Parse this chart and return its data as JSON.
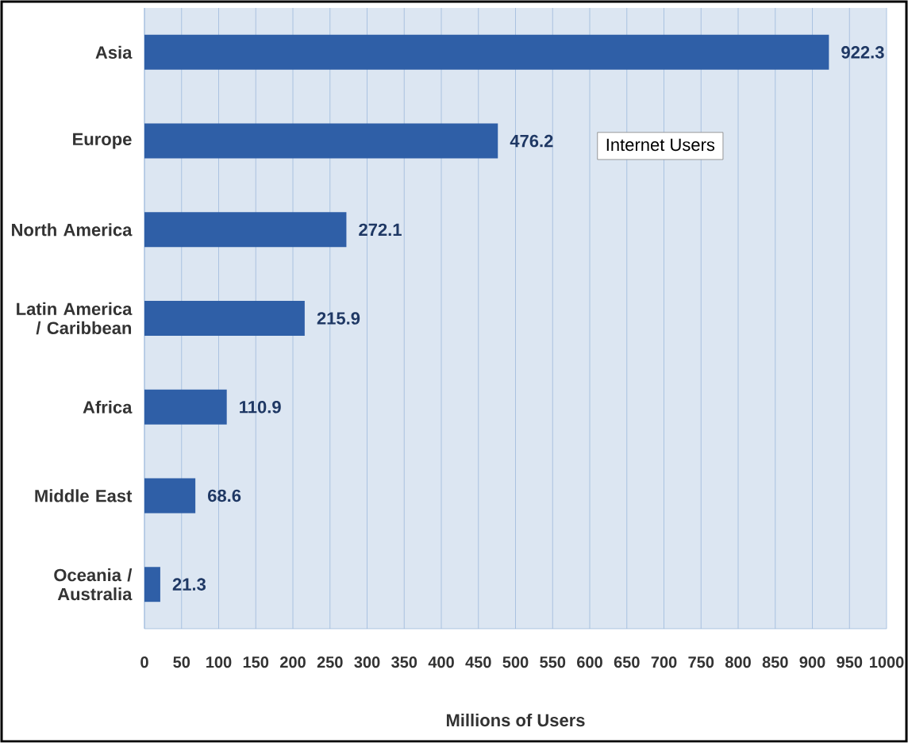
{
  "chart_data": {
    "type": "bar",
    "orientation": "horizontal",
    "xlabel": "Millions of Users",
    "categories": [
      "Asia",
      "Europe",
      "North America",
      "Latin America / Caribbean",
      "Africa",
      "Middle East",
      "Oceania  / Australia"
    ],
    "series": [
      {
        "name": "Internet Users",
        "color": "#2f5fa7",
        "values": [
          922.3,
          476.2,
          272.1,
          215.9,
          110.9,
          68.6,
          21.3
        ]
      }
    ],
    "xlim": [
      0,
      1000
    ],
    "xticks": [
      0,
      50,
      100,
      150,
      200,
      250,
      300,
      350,
      400,
      450,
      500,
      550,
      600,
      650,
      700,
      750,
      800,
      850,
      900,
      950,
      1000
    ],
    "grid": "x",
    "legend": "top right",
    "data_labels": true
  }
}
